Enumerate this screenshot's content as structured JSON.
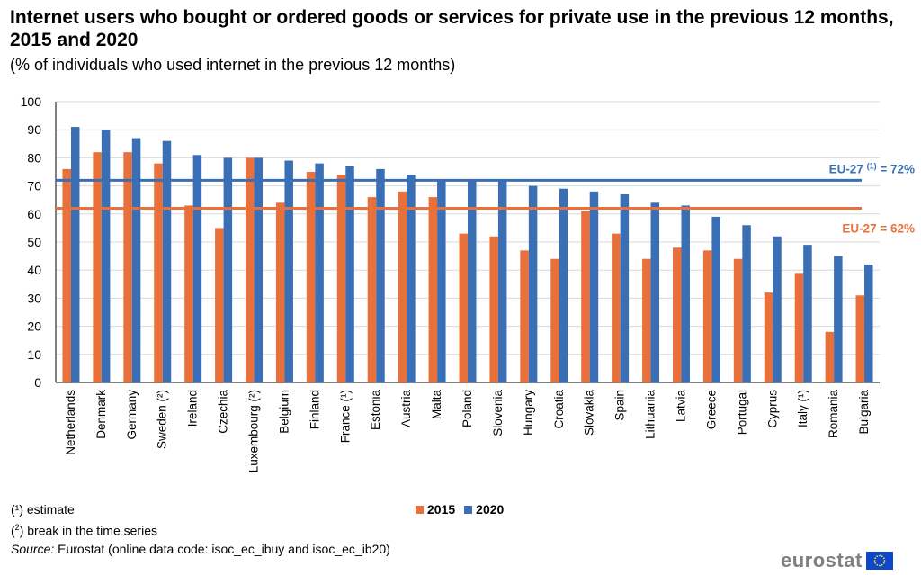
{
  "title": "Internet users who bought or ordered goods or services for private use in the previous 12 months, 2015 and 2020",
  "subtitle": "(% of individuals who used internet in the previous 12 months)",
  "chart_data": {
    "type": "bar",
    "title": "Internet users who bought or ordered goods or services for private use in the previous 12 months, 2015 and 2020",
    "xlabel": "",
    "ylabel": "",
    "ylim": [
      0,
      100
    ],
    "yticks": [
      0,
      10,
      20,
      30,
      40,
      50,
      60,
      70,
      80,
      90,
      100
    ],
    "grid": true,
    "categories": [
      "Netherlands",
      "Denmark",
      "Germany",
      "Sweden (²)",
      "Ireland",
      "Czechia",
      "Luxembourg (²)",
      "Belgium",
      "Finland",
      "France (¹)",
      "Estonia",
      "Austria",
      "Malta",
      "Poland",
      "Slovenia",
      "Hungary",
      "Croatia",
      "Slovakia",
      "Spain",
      "Lithuania",
      "Latvia",
      "Greece",
      "Portugal",
      "Cyprus",
      "Italy (¹)",
      "Romania",
      "Bulgaria"
    ],
    "series": [
      {
        "name": "2015",
        "color": "#e8703a",
        "values": [
          76,
          82,
          82,
          78,
          63,
          55,
          80,
          64,
          75,
          74,
          66,
          68,
          66,
          53,
          52,
          47,
          44,
          61,
          53,
          44,
          48,
          47,
          44,
          32,
          39,
          18,
          31
        ]
      },
      {
        "name": "2020",
        "color": "#3a6fb5",
        "values": [
          91,
          90,
          87,
          86,
          81,
          80,
          80,
          79,
          78,
          77,
          76,
          74,
          72,
          72,
          72,
          70,
          69,
          68,
          67,
          64,
          63,
          59,
          56,
          52,
          49,
          45,
          42
        ]
      }
    ],
    "reference_lines": [
      {
        "name": "EU-27 2020",
        "value": 72,
        "color": "#3a6fb5",
        "label_prefix": "EU-27 ",
        "label_sup": "(1)",
        "label_suffix": " = 72%"
      },
      {
        "name": "EU-27 2015",
        "value": 62,
        "color": "#e8703a",
        "label_prefix": "EU-27 ",
        "label_sup": "",
        "label_suffix": " = 62%"
      }
    ],
    "legend_position": "bottom-center"
  },
  "legend": {
    "items": [
      {
        "label": "2015",
        "color": "#e8703a"
      },
      {
        "label": "2020",
        "color": "#3a6fb5"
      }
    ]
  },
  "notes": {
    "n1_mark": "(¹)",
    "n1_text": " estimate",
    "n2_mark_open": "(",
    "n2_mark_sup": "2",
    "n2_mark_close": ")",
    "n2_text": " break in the time series",
    "source_label": "Source:",
    "source_text": " Eurostat (online data code: isoc_ec_ibuy and isoc_ec_ib20)"
  },
  "logo": {
    "text": "eurostat"
  }
}
